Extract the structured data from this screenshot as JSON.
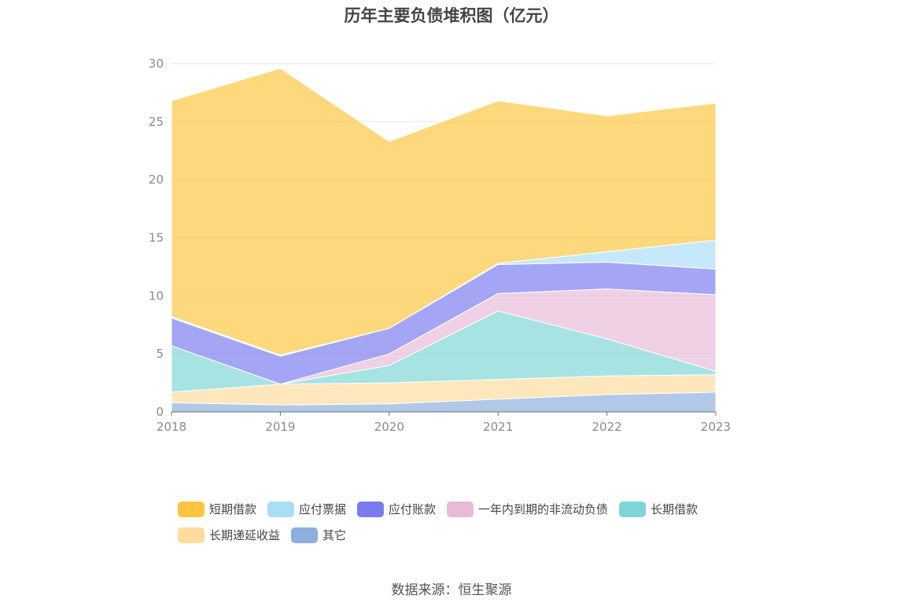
{
  "chart_data": {
    "type": "area",
    "stacked": true,
    "title": "历年主要负债堆积图（亿元）",
    "x": [
      "2018",
      "2019",
      "2020",
      "2021",
      "2022",
      "2023"
    ],
    "ylim": [
      0,
      30
    ],
    "yticks": [
      "0",
      "5",
      "10",
      "15",
      "20",
      "25",
      "30"
    ],
    "grid": true,
    "legend_position": "bottom",
    "series": [
      {
        "name": "其它",
        "color": "#8eaedd",
        "values": [
          0.8,
          0.6,
          0.7,
          1.1,
          1.5,
          1.7
        ]
      },
      {
        "name": "长期递延收益",
        "color": "#fedc9c",
        "values": [
          0.9,
          1.8,
          1.8,
          1.7,
          1.6,
          1.5
        ]
      },
      {
        "name": "长期借款",
        "color": "#7fd5d6",
        "values": [
          4.0,
          0.0,
          1.5,
          5.9,
          3.2,
          0.3
        ]
      },
      {
        "name": "一年内到期的非流动负债",
        "color": "#e8b9d8",
        "values": [
          0.0,
          0.0,
          1.0,
          1.5,
          4.3,
          6.6
        ]
      },
      {
        "name": "应付账款",
        "color": "#7b7bf0",
        "values": [
          2.4,
          2.4,
          2.2,
          2.5,
          2.3,
          2.2
        ]
      },
      {
        "name": "应付票据",
        "color": "#a9def8",
        "values": [
          0.1,
          0.1,
          0.0,
          0.1,
          0.9,
          2.5
        ]
      },
      {
        "name": "短期借款",
        "color": "#fdc53f",
        "values": [
          18.6,
          24.7,
          16.1,
          14.0,
          11.7,
          11.8
        ]
      }
    ]
  },
  "legend": [
    {
      "label": "短期借款",
      "color": "#fdc53f"
    },
    {
      "label": "应付票据",
      "color": "#a9def8"
    },
    {
      "label": "应付账款",
      "color": "#7b7bf0"
    },
    {
      "label": "一年内到期的非流动负债",
      "color": "#e8b9d8"
    },
    {
      "label": "长期借款",
      "color": "#7fd5d6"
    },
    {
      "label": "长期递延收益",
      "color": "#fedc9c"
    },
    {
      "label": "其它",
      "color": "#8eaedd"
    }
  ],
  "source_note": "数据来源：恒生聚源"
}
